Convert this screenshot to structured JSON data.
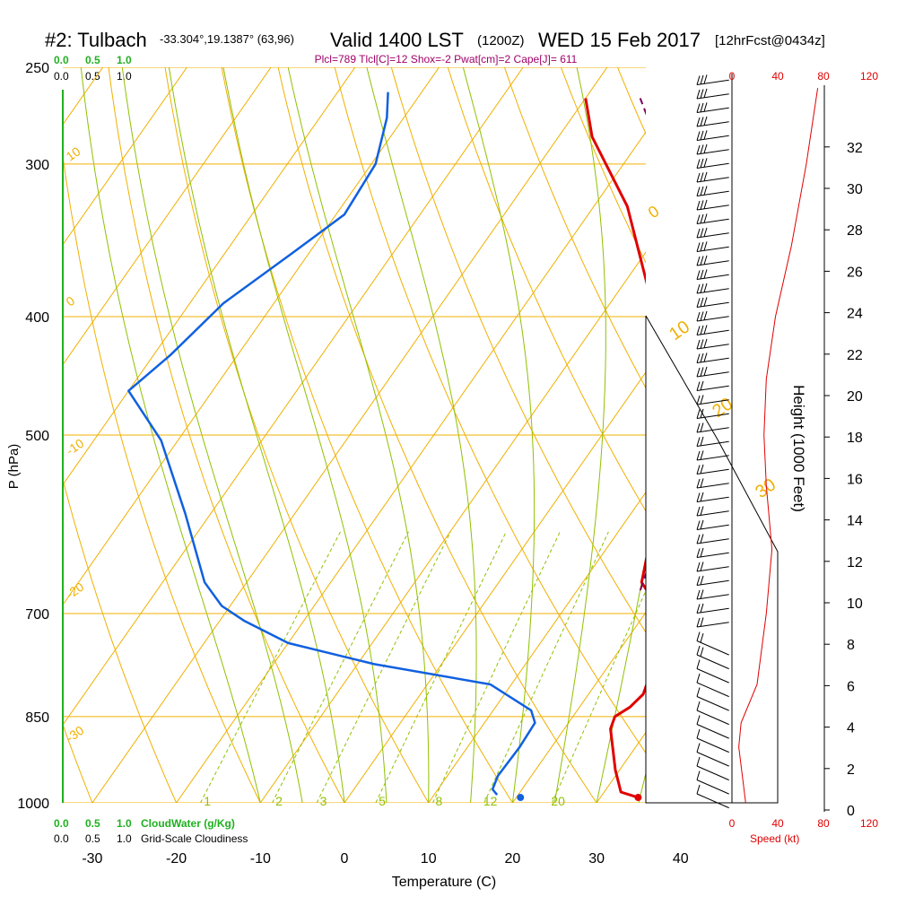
{
  "header": {
    "station": "#2: Tulbach",
    "coords": "-33.304°,19.1387° (63,96)",
    "valid": "Valid 1400 LST",
    "zulu": "(1200Z)",
    "date": "WED 15 Feb 2017",
    "fcst": "[12hrFcst@0434z]",
    "params": "Plcl=789 Tlcl[C]=12 Shox=-2 Pwat[cm]=2 Cape[J]= 611"
  },
  "colors": {
    "temperature": "#e00000",
    "dewpoint": "#1060e0",
    "parcel": "#7a0060",
    "isotherm": "#f0b000",
    "dry_adiabat": "#f0b000",
    "moist_adiabat": "#90c000",
    "mixing_ratio": "#90c000",
    "cloud_scale": "#20b020",
    "wind_speed": "#e00000"
  },
  "top_left_scale": {
    "cloudwater": [
      "0.0",
      "0.5",
      "1.0"
    ],
    "cloudiness": [
      "0.0",
      "0.5",
      "1.0"
    ]
  },
  "bottom_left_scale": {
    "cloudwater": [
      "0.0",
      "0.5",
      "1.0"
    ],
    "cloudwater_label": "CloudWater (g/Kg)",
    "cloudiness": [
      "0.0",
      "0.5",
      "1.0"
    ],
    "cloudiness_label": "Grid-Scale Cloudiness"
  },
  "speed_axis": {
    "ticks": [
      "0",
      "40",
      "80",
      "120"
    ],
    "label": "Speed (kt)"
  },
  "chart_data": {
    "type": "line",
    "subtype": "skew-T log-P sounding",
    "xlabel": "Temperature (C)",
    "ylabel": "P (hPa)",
    "y2label": "Height (1000 Feet)",
    "x_ticks": [
      -30,
      -20,
      -10,
      0,
      10,
      20,
      30,
      40
    ],
    "p_ticks": [
      250,
      300,
      400,
      500,
      700,
      850,
      1000
    ],
    "height_ticks": [
      0,
      2,
      4,
      6,
      8,
      10,
      12,
      14,
      16,
      18,
      20,
      22,
      24,
      26,
      28,
      30,
      32
    ],
    "mixing_ratio_labels": [
      "1",
      "2",
      "3",
      "5",
      "8",
      "12",
      "20"
    ],
    "isotherm_labels": [
      "10",
      "0",
      "-10",
      "-20",
      "-30",
      "0",
      "10",
      "20",
      "30"
    ],
    "series": [
      {
        "key": "temperature",
        "points": [
          {
            "t": 34.5,
            "p": 990
          },
          {
            "t": 32.0,
            "p": 980
          },
          {
            "t": 29.5,
            "p": 940
          },
          {
            "t": 25.5,
            "p": 870
          },
          {
            "t": 25.0,
            "p": 850
          },
          {
            "t": 26.0,
            "p": 835
          },
          {
            "t": 26.5,
            "p": 815
          },
          {
            "t": 25.0,
            "p": 760
          },
          {
            "t": 22.0,
            "p": 700
          },
          {
            "t": 17.0,
            "p": 660
          },
          {
            "t": 14.0,
            "p": 600
          },
          {
            "t": 8.0,
            "p": 500
          },
          {
            "t": 3.5,
            "p": 450
          },
          {
            "t": -3.5,
            "p": 400
          },
          {
            "t": -16.0,
            "p": 325
          },
          {
            "t": -26.0,
            "p": 285
          },
          {
            "t": -30.0,
            "p": 265
          }
        ]
      },
      {
        "key": "dewpoint",
        "points": [
          {
            "t": 17.5,
            "p": 985
          },
          {
            "t": 16.5,
            "p": 975
          },
          {
            "t": 16.0,
            "p": 950
          },
          {
            "t": 16.2,
            "p": 900
          },
          {
            "t": 16.0,
            "p": 860
          },
          {
            "t": 14.5,
            "p": 840
          },
          {
            "t": 7.5,
            "p": 800
          },
          {
            "t": -8.0,
            "p": 770
          },
          {
            "t": -20.0,
            "p": 740
          },
          {
            "t": -27.0,
            "p": 710
          },
          {
            "t": -31.0,
            "p": 690
          },
          {
            "t": -35.0,
            "p": 660
          },
          {
            "t": -43.0,
            "p": 580
          },
          {
            "t": -52.0,
            "p": 505
          },
          {
            "t": -60.0,
            "p": 460
          },
          {
            "t": -58.0,
            "p": 430
          },
          {
            "t": -56.0,
            "p": 390
          },
          {
            "t": -52.0,
            "p": 355
          },
          {
            "t": -49.0,
            "p": 330
          },
          {
            "t": -49.5,
            "p": 300
          },
          {
            "t": -52.0,
            "p": 275
          },
          {
            "t": -54.0,
            "p": 262
          }
        ]
      },
      {
        "key": "parcel",
        "points": [
          {
            "t": 17.5,
            "p": 670
          },
          {
            "t": 15.0,
            "p": 600
          },
          {
            "t": 11.0,
            "p": 500
          },
          {
            "t": 6.5,
            "p": 450
          },
          {
            "t": 1.0,
            "p": 400
          },
          {
            "t": -6.0,
            "p": 350
          },
          {
            "t": -15.0,
            "p": 300
          },
          {
            "t": -23.5,
            "p": 265
          }
        ]
      }
    ],
    "surface_points": [
      {
        "key": "temperature",
        "t": 34.5,
        "p": 990
      },
      {
        "key": "dewpoint",
        "t": 20.5,
        "p": 990
      }
    ],
    "wind_speed_profile_kt": [
      {
        "p": 1000,
        "spd": 12
      },
      {
        "p": 900,
        "spd": 6
      },
      {
        "p": 860,
        "spd": 8
      },
      {
        "p": 800,
        "spd": 22
      },
      {
        "p": 700,
        "spd": 30
      },
      {
        "p": 620,
        "spd": 35
      },
      {
        "p": 550,
        "spd": 30
      },
      {
        "p": 500,
        "spd": 28
      },
      {
        "p": 450,
        "spd": 30
      },
      {
        "p": 400,
        "spd": 38
      },
      {
        "p": 350,
        "spd": 52
      },
      {
        "p": 300,
        "spd": 65
      },
      {
        "p": 260,
        "spd": 75
      }
    ]
  }
}
